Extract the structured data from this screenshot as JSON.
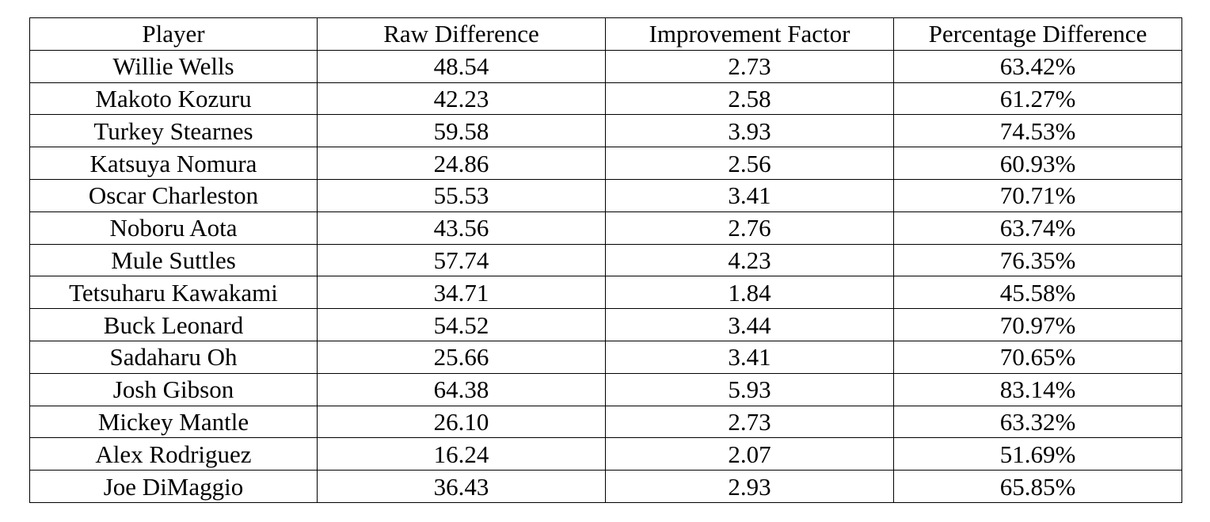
{
  "table": {
    "columns": [
      "Player",
      "Raw Difference",
      "Improvement Factor",
      "Percentage Difference"
    ],
    "rows": [
      [
        "Willie Wells",
        "48.54",
        "2.73",
        "63.42%"
      ],
      [
        "Makoto Kozuru",
        "42.23",
        "2.58",
        "61.27%"
      ],
      [
        "Turkey Stearnes",
        "59.58",
        "3.93",
        "74.53%"
      ],
      [
        "Katsuya Nomura",
        "24.86",
        "2.56",
        "60.93%"
      ],
      [
        "Oscar Charleston",
        "55.53",
        "3.41",
        "70.71%"
      ],
      [
        "Noboru Aota",
        "43.56",
        "2.76",
        "63.74%"
      ],
      [
        "Mule Suttles",
        "57.74",
        "4.23",
        "76.35%"
      ],
      [
        "Tetsuharu Kawakami",
        "34.71",
        "1.84",
        "45.58%"
      ],
      [
        "Buck Leonard",
        "54.52",
        "3.44",
        "70.97%"
      ],
      [
        "Sadaharu Oh",
        "25.66",
        "3.41",
        "70.65%"
      ],
      [
        "Josh Gibson",
        "64.38",
        "5.93",
        "83.14%"
      ],
      [
        "Mickey Mantle",
        "26.10",
        "2.73",
        "63.32%"
      ],
      [
        "Alex Rodriguez",
        "16.24",
        "2.07",
        "51.69%"
      ],
      [
        "Joe DiMaggio",
        "36.43",
        "2.93",
        "65.85%"
      ]
    ]
  }
}
